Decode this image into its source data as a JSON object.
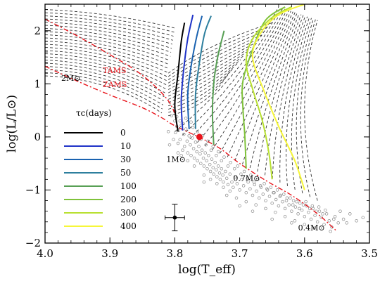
{
  "chart_data": {
    "type": "scatter",
    "title": "",
    "xlabel": "log(T_eff)",
    "ylabel": "log(L/L⊙)",
    "xlim": [
      4.0,
      3.5
    ],
    "ylim": [
      -2.0,
      2.5
    ],
    "x_reversed": true,
    "xticks": [
      "4.0",
      "3.9",
      "3.8",
      "3.7",
      "3.6",
      "3.5"
    ],
    "xtick_values": [
      4.0,
      3.9,
      3.8,
      3.7,
      3.6,
      3.5
    ],
    "yticks": [
      "−2",
      "−1",
      "0",
      "1",
      "2"
    ],
    "ytick_values": [
      -2,
      -1,
      0,
      1,
      2
    ],
    "legend": {
      "title": "τc(days)",
      "placement": "left-center",
      "entries": [
        {
          "label": "0",
          "color": "#000000"
        },
        {
          "label": "10",
          "color": "#1f33c8"
        },
        {
          "label": "30",
          "color": "#1a62b0"
        },
        {
          "label": "50",
          "color": "#2e7f9e"
        },
        {
          "label": "100",
          "color": "#58a055"
        },
        {
          "label": "200",
          "color": "#7fc23a"
        },
        {
          "label": "300",
          "color": "#b8e030"
        },
        {
          "label": "400",
          "color": "#f6f63a"
        }
      ]
    },
    "annotations": [
      {
        "text": "TAMS",
        "x": 3.911,
        "y": 1.2,
        "color": "#e8141b"
      },
      {
        "text": "ZAMS",
        "x": 3.911,
        "y": 0.94,
        "color": "#e8141b"
      },
      {
        "text": "2M⊙",
        "x": 3.975,
        "y": 1.06,
        "color": "#000000"
      },
      {
        "text": "1M⊙",
        "x": 3.813,
        "y": -0.47,
        "color": "#000000"
      },
      {
        "text": "0.7M⊙",
        "x": 3.71,
        "y": -0.83,
        "color": "#000000"
      },
      {
        "text": "0.4M⊙",
        "x": 3.61,
        "y": -1.76,
        "color": "#000000"
      }
    ],
    "zams": [
      [
        4.0,
        1.33
      ],
      [
        3.95,
        1.05
      ],
      [
        3.9,
        0.79
      ],
      [
        3.85,
        0.55
      ],
      [
        3.82,
        0.36
      ],
      [
        3.8,
        0.21
      ],
      [
        3.76,
        -0.02
      ],
      [
        3.73,
        -0.22
      ],
      [
        3.7,
        -0.5
      ],
      [
        3.66,
        -0.82
      ],
      [
        3.62,
        -1.1
      ],
      [
        3.58,
        -1.45
      ],
      [
        3.55,
        -1.78
      ]
    ],
    "tams": [
      [
        4.0,
        2.22
      ],
      [
        3.95,
        1.9
      ],
      [
        3.9,
        1.55
      ],
      [
        3.86,
        1.25
      ],
      [
        3.83,
        0.95
      ],
      [
        3.81,
        0.68
      ],
      [
        3.8,
        0.45
      ]
    ],
    "tau_tracks": [
      {
        "label": "0",
        "points": [
          [
            3.795,
            0.1
          ],
          [
            3.8,
            0.6
          ],
          [
            3.795,
            1.2
          ],
          [
            3.79,
            1.8
          ],
          [
            3.785,
            2.15
          ]
        ]
      },
      {
        "label": "10",
        "points": [
          [
            3.788,
            0.12
          ],
          [
            3.79,
            0.7
          ],
          [
            3.786,
            1.3
          ],
          [
            3.78,
            1.85
          ],
          [
            3.772,
            2.3
          ]
        ]
      },
      {
        "label": "30",
        "points": [
          [
            3.778,
            0.15
          ],
          [
            3.78,
            0.8
          ],
          [
            3.774,
            1.4
          ],
          [
            3.766,
            1.9
          ],
          [
            3.758,
            2.28
          ]
        ]
      },
      {
        "label": "50",
        "points": [
          [
            3.768,
            0.15
          ],
          [
            3.768,
            0.8
          ],
          [
            3.762,
            1.4
          ],
          [
            3.754,
            1.95
          ],
          [
            3.744,
            2.28
          ]
        ]
      },
      {
        "label": "100",
        "points": [
          [
            3.74,
            -0.15
          ],
          [
            3.742,
            0.45
          ],
          [
            3.74,
            1.0
          ],
          [
            3.734,
            1.5
          ],
          [
            3.724,
            2.0
          ]
        ]
      },
      {
        "label": "200",
        "points": [
          [
            3.69,
            -0.6
          ],
          [
            3.692,
            0.0
          ],
          [
            3.695,
            0.55
          ],
          [
            3.695,
            1.05
          ],
          [
            3.68,
            1.65
          ],
          [
            3.66,
            2.2
          ],
          [
            3.63,
            2.45
          ]
        ]
      },
      {
        "label": "300",
        "points": [
          [
            3.65,
            -0.8
          ],
          [
            3.655,
            -0.3
          ],
          [
            3.665,
            0.3
          ],
          [
            3.68,
            0.9
          ],
          [
            3.69,
            1.4
          ],
          [
            3.68,
            1.85
          ],
          [
            3.65,
            2.25
          ],
          [
            3.62,
            2.45
          ]
        ]
      },
      {
        "label": "400",
        "points": [
          [
            3.6,
            -1.0
          ],
          [
            3.615,
            -0.45
          ],
          [
            3.64,
            0.2
          ],
          [
            3.662,
            0.85
          ],
          [
            3.68,
            1.5
          ],
          [
            3.668,
            1.95
          ],
          [
            3.64,
            2.3
          ],
          [
            3.6,
            2.5
          ]
        ]
      }
    ],
    "sun_marker": {
      "x": 3.762,
      "y": 0.0,
      "color": "#e8141b"
    },
    "error_bar_point": {
      "x": 3.8,
      "y": -1.52,
      "xerr": 0.015,
      "yerr": 0.25
    },
    "scatter_points": [
      [
        3.8,
        0.3
      ],
      [
        3.799,
        0.08
      ],
      [
        3.797,
        0.2
      ],
      [
        3.795,
        -0.12
      ],
      [
        3.794,
        0.12
      ],
      [
        3.792,
        -0.05
      ],
      [
        3.79,
        0.22
      ],
      [
        3.788,
        -0.25
      ],
      [
        3.786,
        0.05
      ],
      [
        3.785,
        -0.18
      ],
      [
        3.783,
        0.15
      ],
      [
        3.781,
        -0.08
      ],
      [
        3.78,
        -0.3
      ],
      [
        3.778,
        0.02
      ],
      [
        3.776,
        -0.15
      ],
      [
        3.775,
        -0.35
      ],
      [
        3.773,
        -0.02
      ],
      [
        3.771,
        -0.22
      ],
      [
        3.77,
        -0.4
      ],
      [
        3.768,
        -0.1
      ],
      [
        3.766,
        -0.28
      ],
      [
        3.765,
        -0.45
      ],
      [
        3.763,
        -0.18
      ],
      [
        3.761,
        -0.32
      ],
      [
        3.76,
        -0.5
      ],
      [
        3.758,
        -0.25
      ],
      [
        3.756,
        -0.4
      ],
      [
        3.755,
        -0.55
      ],
      [
        3.753,
        -0.3
      ],
      [
        3.751,
        -0.45
      ],
      [
        3.75,
        -0.6
      ],
      [
        3.748,
        -0.35
      ],
      [
        3.746,
        -0.52
      ],
      [
        3.745,
        -0.65
      ],
      [
        3.743,
        -0.42
      ],
      [
        3.741,
        -0.58
      ],
      [
        3.74,
        -0.7
      ],
      [
        3.738,
        -0.48
      ],
      [
        3.736,
        -0.62
      ],
      [
        3.735,
        -0.75
      ],
      [
        3.733,
        -0.55
      ],
      [
        3.731,
        -0.68
      ],
      [
        3.73,
        -0.8
      ],
      [
        3.728,
        -0.6
      ],
      [
        3.726,
        -0.72
      ],
      [
        3.725,
        -0.85
      ],
      [
        3.722,
        -0.65
      ],
      [
        3.72,
        -0.78
      ],
      [
        3.718,
        -0.9
      ],
      [
        3.715,
        -0.7
      ],
      [
        3.712,
        -0.85
      ],
      [
        3.71,
        -0.95
      ],
      [
        3.707,
        -0.75
      ],
      [
        3.704,
        -0.88
      ],
      [
        3.7,
        -1.0
      ],
      [
        3.697,
        -0.8
      ],
      [
        3.694,
        -0.92
      ],
      [
        3.69,
        -1.05
      ],
      [
        3.687,
        -0.85
      ],
      [
        3.684,
        -0.98
      ],
      [
        3.68,
        -1.1
      ],
      [
        3.677,
        -0.9
      ],
      [
        3.674,
        -1.02
      ],
      [
        3.67,
        -1.15
      ],
      [
        3.667,
        -0.95
      ],
      [
        3.664,
        -1.08
      ],
      [
        3.66,
        -1.2
      ],
      [
        3.657,
        -1.0
      ],
      [
        3.654,
        -1.12
      ],
      [
        3.65,
        -1.25
      ],
      [
        3.647,
        -1.05
      ],
      [
        3.644,
        -1.18
      ],
      [
        3.64,
        -1.3
      ],
      [
        3.637,
        -1.1
      ],
      [
        3.634,
        -1.22
      ],
      [
        3.63,
        -1.35
      ],
      [
        3.627,
        -1.15
      ],
      [
        3.624,
        -1.28
      ],
      [
        3.62,
        -1.4
      ],
      [
        3.617,
        -1.2
      ],
      [
        3.614,
        -1.32
      ],
      [
        3.61,
        -1.45
      ],
      [
        3.607,
        -1.25
      ],
      [
        3.604,
        -1.38
      ],
      [
        3.6,
        -1.5
      ],
      [
        3.597,
        -1.3
      ],
      [
        3.594,
        -1.42
      ],
      [
        3.59,
        -1.55
      ],
      [
        3.587,
        -1.35
      ],
      [
        3.584,
        -1.48
      ],
      [
        3.58,
        -1.6
      ],
      [
        3.577,
        -1.4
      ],
      [
        3.574,
        -1.52
      ],
      [
        3.57,
        -1.65
      ],
      [
        3.566,
        -1.45
      ],
      [
        3.562,
        -1.58
      ],
      [
        3.558,
        -1.7
      ],
      [
        3.553,
        -1.5
      ],
      [
        3.548,
        -1.62
      ],
      [
        3.545,
        -1.4
      ],
      [
        3.54,
        -1.55
      ],
      [
        3.53,
        -1.45
      ],
      [
        3.52,
        -1.58
      ],
      [
        3.51,
        -1.52
      ],
      [
        3.802,
        -0.05
      ],
      [
        3.79,
        -0.35
      ],
      [
        3.805,
        0.4
      ],
      [
        3.772,
        0.18
      ],
      [
        3.76,
        -0.05
      ],
      [
        3.752,
        -0.15
      ],
      [
        3.744,
        -0.25
      ],
      [
        3.736,
        -0.35
      ],
      [
        3.728,
        -0.45
      ],
      [
        3.718,
        -0.55
      ],
      [
        3.708,
        -0.6
      ],
      [
        3.698,
        -0.7
      ],
      [
        3.688,
        -0.78
      ],
      [
        3.678,
        -0.85
      ],
      [
        3.668,
        -0.92
      ],
      [
        3.658,
        -0.98
      ],
      [
        3.648,
        -1.05
      ],
      [
        3.638,
        -1.12
      ],
      [
        3.628,
        -1.2
      ],
      [
        3.618,
        -1.28
      ],
      [
        3.608,
        -1.35
      ],
      [
        3.598,
        -1.22
      ],
      [
        3.588,
        -1.3
      ],
      [
        3.578,
        -1.32
      ],
      [
        3.568,
        -1.38
      ],
      [
        3.705,
        -1.15
      ],
      [
        3.69,
        -1.22
      ],
      [
        3.675,
        -1.28
      ],
      [
        3.66,
        -1.35
      ],
      [
        3.645,
        -1.42
      ],
      [
        3.63,
        -1.5
      ],
      [
        3.615,
        -1.58
      ],
      [
        3.6,
        -1.65
      ],
      [
        3.585,
        -1.72
      ],
      [
        3.56,
        -1.78
      ],
      [
        3.755,
        -0.72
      ],
      [
        3.745,
        -0.8
      ],
      [
        3.735,
        -0.88
      ],
      [
        3.725,
        -0.95
      ],
      [
        3.715,
        -1.02
      ],
      [
        3.77,
        -0.55
      ],
      [
        3.78,
        -0.45
      ],
      [
        3.795,
        -0.3
      ],
      [
        3.81,
        0.1
      ],
      [
        3.808,
        -0.15
      ],
      [
        3.783,
        0.35
      ],
      [
        3.775,
        0.28
      ],
      [
        3.765,
        0.1
      ],
      [
        3.757,
        0.02
      ],
      [
        3.749,
        -0.08
      ],
      [
        3.741,
        -0.18
      ],
      [
        3.733,
        -0.28
      ],
      [
        3.724,
        -0.38
      ],
      [
        3.714,
        -0.48
      ],
      [
        3.703,
        -0.55
      ],
      [
        3.693,
        -0.65
      ],
      [
        3.683,
        -0.72
      ],
      [
        3.672,
        -0.8
      ],
      [
        3.662,
        -0.88
      ],
      [
        3.652,
        -0.95
      ],
      [
        3.642,
        -1.0
      ],
      [
        3.632,
        -1.08
      ],
      [
        3.622,
        -1.15
      ],
      [
        3.612,
        -1.22
      ],
      [
        3.602,
        -1.28
      ],
      [
        3.592,
        -1.35
      ],
      [
        3.582,
        -1.4
      ],
      [
        3.572,
        -1.45
      ],
      [
        3.555,
        -1.55
      ],
      [
        3.535,
        -1.62
      ],
      [
        3.8,
        0.48
      ],
      [
        3.797,
        0.38
      ],
      [
        3.792,
        0.3
      ],
      [
        3.787,
        0.25
      ],
      [
        3.755,
        -0.85
      ],
      [
        3.7,
        -1.3
      ],
      [
        3.65,
        -1.55
      ],
      [
        3.62,
        -1.62
      ],
      [
        3.68,
        -1.4
      ],
      [
        3.72,
        -1.1
      ]
    ]
  }
}
